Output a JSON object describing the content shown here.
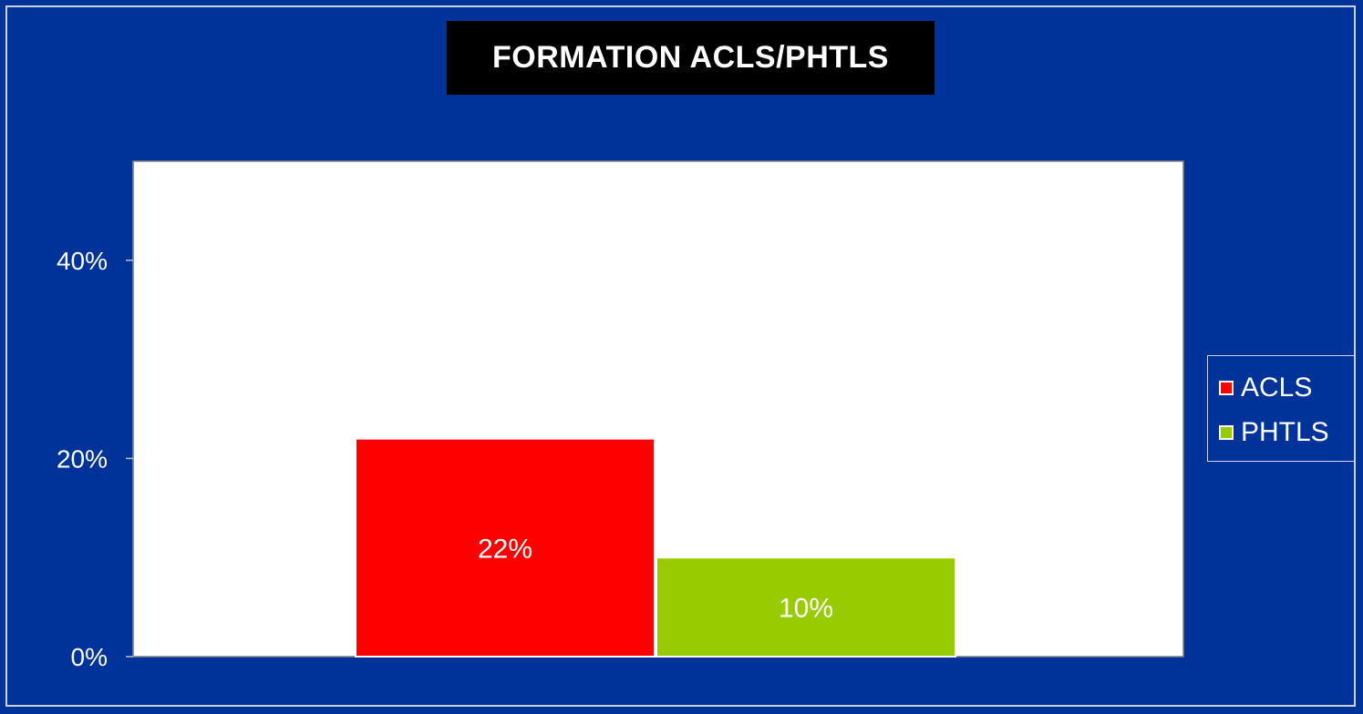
{
  "title": "FORMATION ACLS/PHTLS",
  "colors": {
    "background": "#003399",
    "plot_area": "#ffffff",
    "title_box": "#000000"
  },
  "chart_data": {
    "type": "bar",
    "title": "FORMATION ACLS/PHTLS",
    "xlabel": "",
    "ylabel": "",
    "ylim": [
      0,
      0.5
    ],
    "yticks": [
      0,
      0.2,
      0.4
    ],
    "ytick_labels": [
      "0%",
      "20%",
      "40%"
    ],
    "grid": false,
    "legend_position": "right",
    "series": [
      {
        "name": "ACLS",
        "value": 0.22,
        "label": "22%",
        "color": "#ff0000"
      },
      {
        "name": "PHTLS",
        "value": 0.1,
        "label": "10%",
        "color": "#99cc00"
      }
    ]
  }
}
